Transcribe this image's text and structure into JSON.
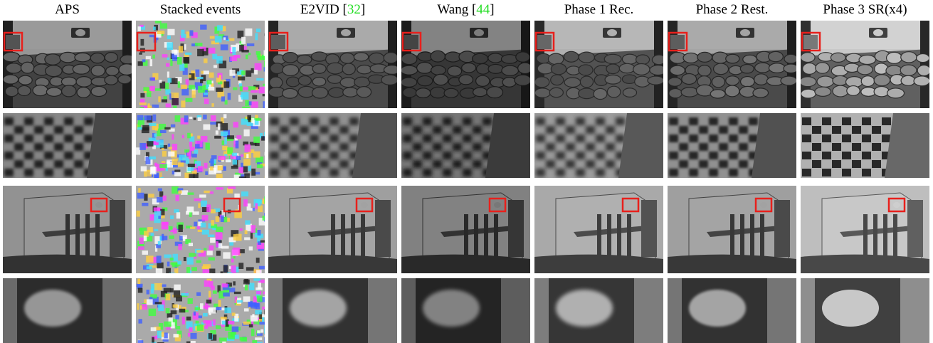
{
  "figure": {
    "columns": [
      {
        "label": "APS",
        "cite_open": "",
        "cite": "",
        "cite_close": ""
      },
      {
        "label": "Stacked events",
        "cite_open": "",
        "cite": "",
        "cite_close": ""
      },
      {
        "label": "E2VID ",
        "cite_open": "[",
        "cite": "32",
        "cite_close": "]"
      },
      {
        "label": "Wang ",
        "cite_open": "[",
        "cite": "44",
        "cite_close": "]"
      },
      {
        "label": "Phase 1 Rec.",
        "cite_open": "",
        "cite": "",
        "cite_close": ""
      },
      {
        "label": "Phase 2 Rest.",
        "cite_open": "",
        "cite": "",
        "cite_close": ""
      },
      {
        "label": "Phase 3 SR(x4)",
        "cite_open": "",
        "cite": "",
        "cite_close": ""
      }
    ],
    "colors": {
      "roi_box": "#e8201c",
      "citation": "#22dd22"
    }
  }
}
